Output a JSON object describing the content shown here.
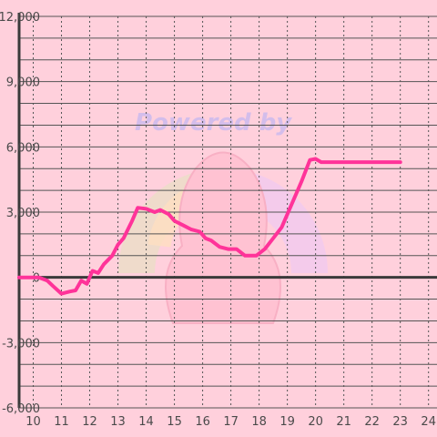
{
  "watermark": {
    "text": "Powered by"
  },
  "chart_data": {
    "type": "line",
    "title": "",
    "xlabel": "",
    "ylabel": "",
    "xlim": [
      9.5,
      24.3
    ],
    "ylim": [
      -6000,
      12000
    ],
    "grid": true,
    "x_ticks": [
      10,
      11,
      12,
      13,
      14,
      15,
      16,
      17,
      18,
      19,
      20,
      21,
      22,
      23,
      24
    ],
    "x_tick_labels": [
      "10",
      "11",
      "12",
      "13",
      "14",
      "15",
      "16",
      "17",
      "18",
      "19",
      "20",
      "21",
      "22",
      "23",
      "24"
    ],
    "y_ticks": [
      -6000,
      -3000,
      0,
      3000,
      6000,
      9000,
      12000
    ],
    "y_tick_labels": [
      "-6,000",
      "-3,000",
      "0",
      "3,000",
      "6,000",
      "9,000",
      "12,000"
    ],
    "line_color": "#ff3399",
    "series": [
      {
        "x": [
          9.5,
          10.2,
          10.5,
          10.7,
          11.0,
          11.3,
          11.5,
          11.7,
          11.9,
          12.1,
          12.3,
          12.5,
          12.8,
          13.0,
          13.2,
          13.5,
          13.7,
          14.0,
          14.3,
          14.5,
          14.8,
          15.0,
          15.3,
          15.6,
          15.9,
          16.1,
          16.3,
          16.6,
          16.9,
          17.2,
          17.5,
          17.9,
          18.2,
          18.5,
          18.8,
          19.1,
          19.5,
          19.8,
          20.0,
          20.2,
          20.5,
          21.0,
          22.0,
          23.0
        ],
        "y": [
          0,
          0,
          -150,
          -400,
          -750,
          -650,
          -600,
          -150,
          -300,
          300,
          200,
          600,
          1000,
          1500,
          1800,
          2600,
          3200,
          3150,
          3000,
          3100,
          2900,
          2600,
          2400,
          2200,
          2100,
          1800,
          1700,
          1400,
          1300,
          1300,
          1000,
          1000,
          1300,
          1800,
          2300,
          3200,
          4400,
          5400,
          5450,
          5300,
          5300,
          5300,
          5300,
          5300
        ]
      }
    ]
  }
}
